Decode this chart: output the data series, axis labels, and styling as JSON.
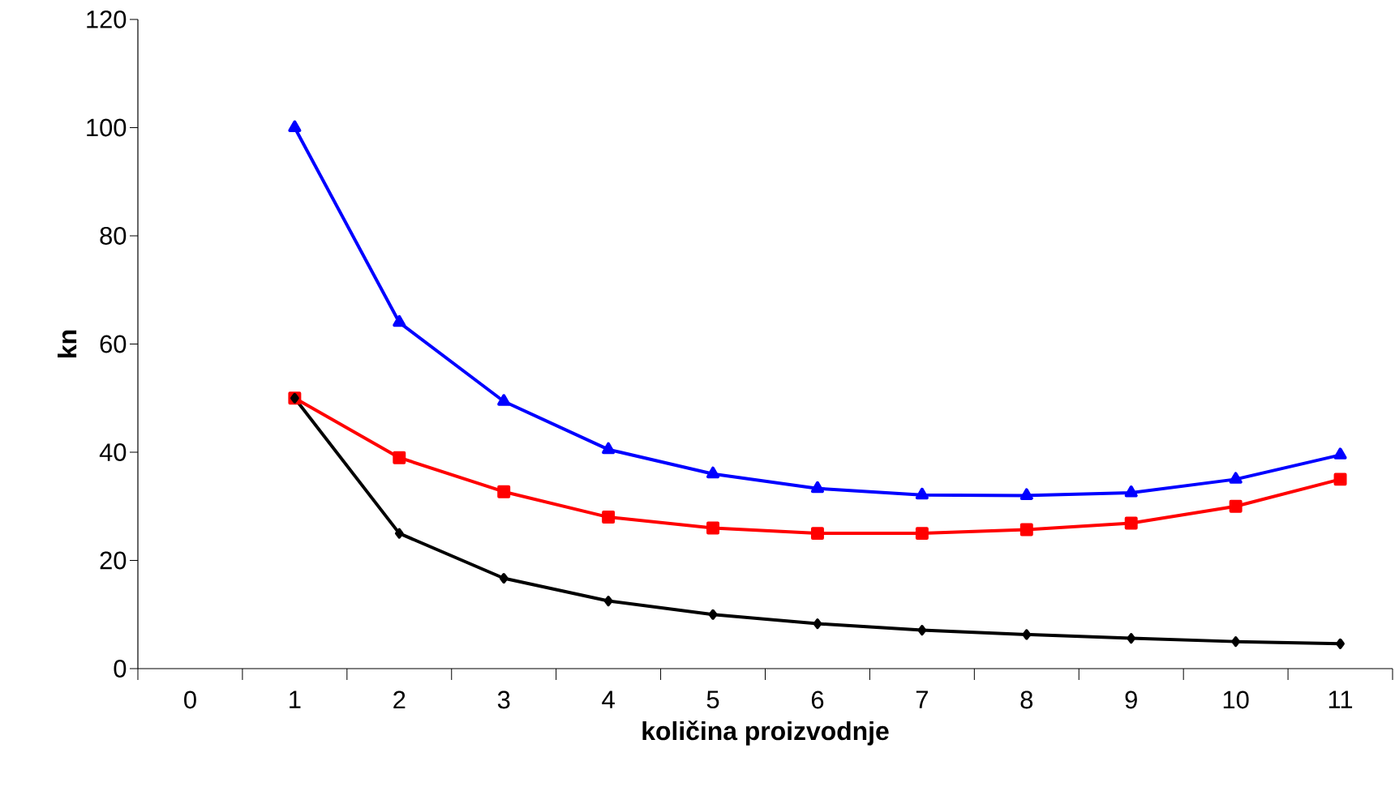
{
  "chart_data": {
    "type": "line",
    "xlabel": "količina proizvodnje",
    "ylabel": "kn",
    "categories": [
      "0",
      "1",
      "2",
      "3",
      "4",
      "5",
      "6",
      "7",
      "8",
      "9",
      "10",
      "11"
    ],
    "series": [
      {
        "color": "#0000ff",
        "marker": "triangle",
        "values": [
          null,
          100,
          64,
          49.4,
          40.5,
          36,
          33.3,
          32.1,
          32,
          32.5,
          35,
          39.5
        ]
      },
      {
        "color": "#ff0000",
        "marker": "square",
        "values": [
          null,
          50,
          39,
          32.7,
          28,
          26,
          25,
          25,
          25.7,
          26.9,
          30,
          35
        ]
      },
      {
        "color": "#000000",
        "marker": "diamond",
        "values": [
          null,
          50,
          25,
          16.7,
          12.5,
          10,
          8.3,
          7.1,
          6.3,
          5.6,
          5,
          4.6
        ]
      }
    ],
    "ylim": [
      0,
      120
    ],
    "yticks": [
      0,
      20,
      40,
      60,
      80,
      100,
      120
    ],
    "grid": false,
    "line_style": "solid"
  }
}
